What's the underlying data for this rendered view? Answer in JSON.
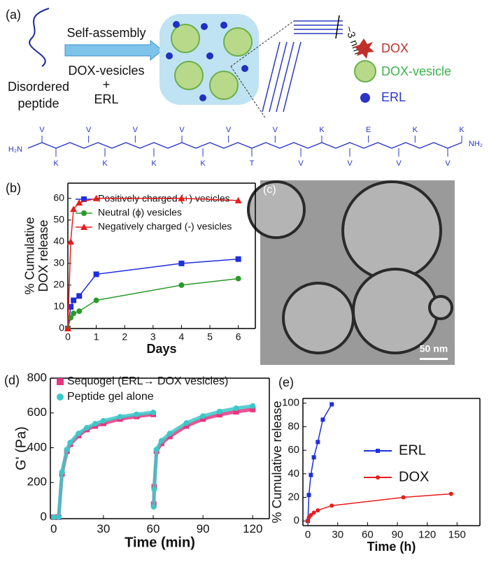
{
  "panel_a": {
    "label": "(a)",
    "peptide": [
      "Disordered",
      "peptide"
    ],
    "arrow_top": "Self-assembly",
    "arrow_bottom": [
      "DOX-vesicles",
      "+",
      "ERL"
    ],
    "dimension": "~3 nm",
    "legend": [
      "DOX",
      "DOX-vesicle",
      "ERL"
    ],
    "sequence": {
      "start": "H₂N",
      "end": "NH₂",
      "top": [
        "V",
        "V",
        "V",
        "V",
        "V",
        "V",
        "K",
        "E",
        "K",
        "K"
      ],
      "bottom": [
        "K",
        "K",
        "K",
        "K",
        "T",
        "V",
        "V",
        "V",
        "V"
      ]
    }
  },
  "panel_c": {
    "label": "(c)",
    "scale_bar": "50 nm"
  },
  "chart_data": [
    {
      "type": "line",
      "label": "(b)",
      "xlabel": "Days",
      "ylabel": [
        "% Cumulative",
        "DOX release"
      ],
      "xlim": [
        0,
        6.6
      ],
      "ylim": [
        0,
        67
      ],
      "xticks": [
        0,
        1,
        2,
        3,
        4,
        5,
        6
      ],
      "yticks": [
        0,
        10,
        20,
        30,
        40,
        50,
        60
      ],
      "frame": true,
      "legend": "upper left",
      "x": [
        0,
        0.1,
        0.2,
        0.4,
        1,
        4,
        6
      ],
      "series": [
        {
          "name": "Positively charged (+) vesicles",
          "color": "#1f2ee0",
          "marker": "square",
          "values": [
            0,
            10,
            13,
            15,
            25,
            30,
            32
          ]
        },
        {
          "name": "Neutral (ϕ) vesicles",
          "color": "#2a9a2a",
          "marker": "circle",
          "values": [
            0,
            5,
            7,
            8,
            13,
            20,
            23
          ]
        },
        {
          "name": "Negatively charged (-) vesicles",
          "color": "#e81c1c",
          "marker": "triangle",
          "values": [
            0,
            40,
            55,
            58,
            60,
            60,
            59
          ]
        }
      ]
    },
    {
      "type": "line",
      "label": "(d)",
      "xlabel": "Time (min)",
      "ylabel": [
        "G' (Pa)"
      ],
      "xlim": [
        -2,
        130
      ],
      "ylim": [
        -8,
        800
      ],
      "xticks": [
        0,
        30,
        60,
        90,
        120
      ],
      "yticks": [
        0,
        200,
        400,
        600,
        800
      ],
      "frame": true,
      "legend": "upper left",
      "x": [
        0,
        3,
        5,
        8,
        10,
        15,
        20,
        25,
        30,
        40,
        50,
        60,
        60,
        60.3,
        60.6,
        62,
        65,
        70,
        80,
        90,
        100,
        110,
        120
      ],
      "series": [
        {
          "name": "Sequogel (ERL→ DOX vesicles)",
          "color": "#e8357f",
          "marker": "square",
          "values": [
            0,
            0,
            250,
            380,
            420,
            470,
            505,
            525,
            540,
            565,
            580,
            592,
            null,
            75,
            175,
            380,
            425,
            465,
            525,
            565,
            590,
            607,
            620
          ]
        },
        {
          "name": "Peptide gel alone",
          "color": "#3cc8c8",
          "marker": "circle",
          "values": [
            0,
            0,
            260,
            390,
            430,
            482,
            515,
            538,
            555,
            578,
            592,
            603,
            null,
            60,
            160,
            390,
            440,
            482,
            542,
            582,
            608,
            627,
            640
          ]
        }
      ]
    },
    {
      "type": "line",
      "label": "(e)",
      "xlabel": "Time (h)",
      "ylabel": [
        "% Cumulative release"
      ],
      "xlim": [
        -5,
        173
      ],
      "ylim": [
        -4,
        104
      ],
      "xticks": [
        0,
        30,
        60,
        90,
        120,
        150
      ],
      "yticks": [
        0,
        20,
        40,
        60,
        80,
        100
      ],
      "frame": true,
      "legend": "right",
      "series": [
        {
          "name": "ERL",
          "color": "#1f2ee0",
          "marker": "square",
          "x": [
            0,
            1,
            3,
            6,
            10,
            15,
            24
          ],
          "values": [
            0,
            22,
            39,
            54,
            67,
            86,
            99
          ]
        },
        {
          "name": "DOX",
          "color": "#e81c1c",
          "marker": "circle",
          "x": [
            0,
            1,
            3,
            6,
            10,
            24,
            96,
            144
          ],
          "values": [
            0,
            3,
            5,
            7,
            9,
            13,
            20,
            23
          ]
        }
      ]
    }
  ]
}
